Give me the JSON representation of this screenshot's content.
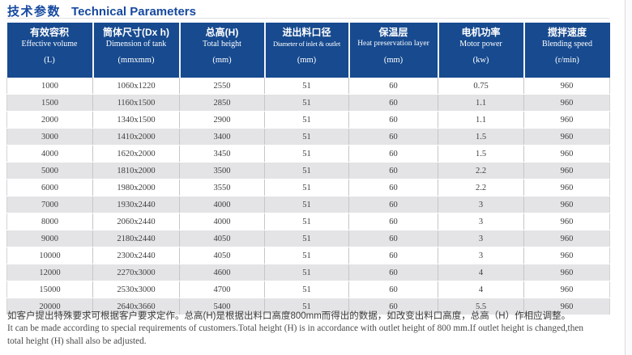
{
  "title": {
    "zh": "技术参数",
    "en": "Technical Parameters"
  },
  "table": {
    "columns": [
      {
        "zh": "有效容积",
        "en": "Effective volume",
        "unit": "(L)"
      },
      {
        "zh": "筒体尺寸(Dx h)",
        "en": "Dimension of tank",
        "unit": "(mmxmm)"
      },
      {
        "zh": "总高(H)",
        "en": "Total height",
        "unit": "(mm)"
      },
      {
        "zh": "进出料口径",
        "en": "Diameter of inlet & outlet",
        "unit": "(mm)"
      },
      {
        "zh": "保温层",
        "en": "Heat preservation layer",
        "unit": "(mm)"
      },
      {
        "zh": "电机功率",
        "en": "Motor power",
        "unit": "(kw)"
      },
      {
        "zh": "搅拌速度",
        "en": "Blending speed",
        "unit": "(r/min)"
      }
    ],
    "rows": [
      [
        "1000",
        "1060x1220",
        "2550",
        "51",
        "60",
        "0.75",
        "960"
      ],
      [
        "1500",
        "1160x1500",
        "2850",
        "51",
        "60",
        "1.1",
        "960"
      ],
      [
        "2000",
        "1340x1500",
        "2900",
        "51",
        "60",
        "1.1",
        "960"
      ],
      [
        "3000",
        "1410x2000",
        "3400",
        "51",
        "60",
        "1.5",
        "960"
      ],
      [
        "4000",
        "1620x2000",
        "3450",
        "51",
        "60",
        "1.5",
        "960"
      ],
      [
        "5000",
        "1810x2000",
        "3500",
        "51",
        "60",
        "2.2",
        "960"
      ],
      [
        "6000",
        "1980x2000",
        "3550",
        "51",
        "60",
        "2.2",
        "960"
      ],
      [
        "7000",
        "1930x2440",
        "4000",
        "51",
        "60",
        "3",
        "960"
      ],
      [
        "8000",
        "2060x2440",
        "4000",
        "51",
        "60",
        "3",
        "960"
      ],
      [
        "9000",
        "2180x2440",
        "4050",
        "51",
        "60",
        "3",
        "960"
      ],
      [
        "10000",
        "2300x2440",
        "4050",
        "51",
        "60",
        "3",
        "960"
      ],
      [
        "12000",
        "2270x3000",
        "4600",
        "51",
        "60",
        "4",
        "960"
      ],
      [
        "15000",
        "2530x3000",
        "4700",
        "51",
        "60",
        "4",
        "960"
      ],
      [
        "20000",
        "2640x3660",
        "5400",
        "51",
        "60",
        "5.5",
        "960"
      ]
    ]
  },
  "footnote": {
    "zh": "如客户提出特殊要求可根据客户要求定作。总高(H)是根据出料口高度800mm而得出的数据，如改变出料口高度，总高（H）作相应调整。",
    "en_lines": [
      "It can be made according to special requirements of customers.Total height (H) is in accordance with outlet height of 800 mm.If outlet height is changed,then",
      "total height (H) shall also be adjusted."
    ]
  },
  "colors": {
    "header_bg": "#174a8f",
    "title": "#1649a0",
    "row_alt": "#e4e4e6"
  }
}
